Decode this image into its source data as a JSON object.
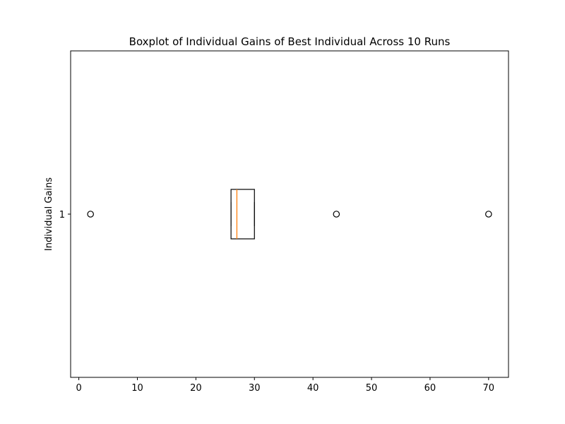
{
  "chart_data": {
    "type": "boxplot",
    "orientation": "horizontal",
    "title": "Boxplot of Individual Gains of Best Individual Across 10 Runs",
    "xlabel": "",
    "ylabel": "Individual Gains",
    "xlim": [
      -1.4,
      73.4
    ],
    "xticks": [
      0,
      10,
      20,
      30,
      40,
      50,
      60,
      70
    ],
    "ytick_labels": [
      "1"
    ],
    "grid": false,
    "boxes": [
      {
        "position": 1,
        "whisker_low": 26,
        "q1": 26,
        "median": 27,
        "q3": 30,
        "whisker_high": 30,
        "outliers": [
          2,
          44,
          70
        ]
      }
    ],
    "colors": {
      "box": "#000000",
      "median": "#ff7f0e",
      "outlier_edge": "#000000"
    }
  }
}
